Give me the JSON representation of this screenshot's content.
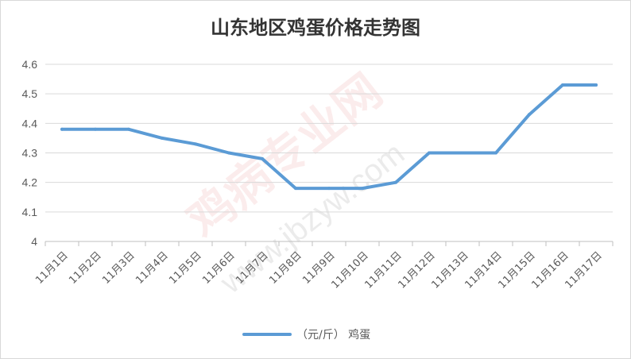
{
  "chart_data": {
    "type": "line",
    "title": "山东地区鸡蛋价格走势图",
    "categories": [
      "11月1日",
      "11月2日",
      "11月3日",
      "11月4日",
      "11月5日",
      "11月6日",
      "11月7日",
      "11月8日",
      "11月9日",
      "11月10日",
      "11月11日",
      "11月12日",
      "11月13日",
      "11月14日",
      "11月15日",
      "11月16日",
      "11月17日"
    ],
    "series": [
      {
        "name": "（元/斤） 鸡蛋",
        "values": [
          4.38,
          4.38,
          4.38,
          4.35,
          4.33,
          4.3,
          4.28,
          4.18,
          4.18,
          4.18,
          4.2,
          4.3,
          4.3,
          4.3,
          4.43,
          4.53,
          4.53
        ],
        "color": "#5b9bd5"
      }
    ],
    "yticks": [
      "4",
      "4.1",
      "4.2",
      "4.3",
      "4.4",
      "4.5",
      "4.6"
    ],
    "ylim": [
      4,
      4.6
    ],
    "xlabel": "",
    "ylabel": "",
    "grid": true,
    "legend_position": "bottom"
  },
  "watermark": {
    "text": "鸡病专业网",
    "url": "www.jbzyw.com"
  }
}
